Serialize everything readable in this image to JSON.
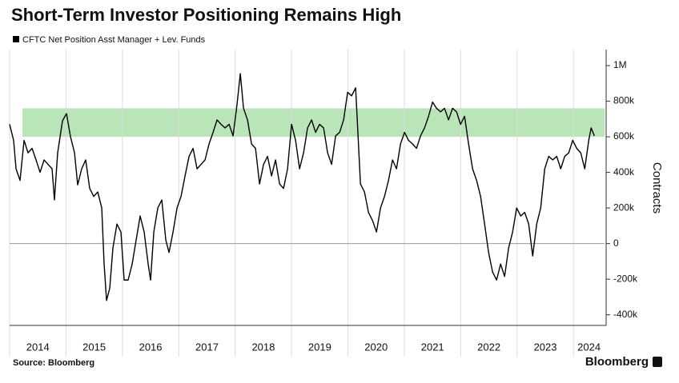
{
  "chart_data": {
    "type": "line",
    "title": "Short-Term Investor Positioning Remains High",
    "y_label": "Contracts",
    "source": "Source: Bloomberg",
    "brand": "Bloomberg",
    "x": [
      2014,
      2014.071,
      2014.114,
      2014.185,
      2014.256,
      2014.327,
      2014.398,
      2014.469,
      2014.54,
      2014.611,
      2014.682,
      2014.753,
      2014.795,
      2014.852,
      2014.938,
      2015.009,
      2015.08,
      2015.151,
      2015.207,
      2015.278,
      2015.349,
      2015.42,
      2015.491,
      2015.563,
      2015.634,
      2015.676,
      2015.719,
      2015.776,
      2015.832,
      2015.903,
      2015.974,
      2016.031,
      2016.102,
      2016.173,
      2016.244,
      2016.315,
      2016.386,
      2016.457,
      2016.5,
      2016.557,
      2016.628,
      2016.699,
      2016.77,
      2016.827,
      2016.898,
      2016.969,
      2017.04,
      2017.111,
      2017.182,
      2017.253,
      2017.324,
      2017.395,
      2017.466,
      2017.537,
      2017.608,
      2017.679,
      2017.75,
      2017.821,
      2017.892,
      2017.963,
      2018.034,
      2018.091,
      2018.148,
      2018.219,
      2018.29,
      2018.361,
      2018.432,
      2018.503,
      2018.574,
      2018.645,
      2018.716,
      2018.787,
      2018.858,
      2018.929,
      2019,
      2019.071,
      2019.142,
      2019.213,
      2019.284,
      2019.355,
      2019.426,
      2019.497,
      2019.568,
      2019.639,
      2019.71,
      2019.781,
      2019.852,
      2019.923,
      2019.994,
      2020.065,
      2020.136,
      2020.179,
      2020.222,
      2020.293,
      2020.364,
      2020.435,
      2020.506,
      2020.577,
      2020.648,
      2020.719,
      2020.79,
      2020.861,
      2020.932,
      2021.003,
      2021.074,
      2021.145,
      2021.216,
      2021.287,
      2021.358,
      2021.429,
      2021.5,
      2021.571,
      2021.642,
      2021.713,
      2021.784,
      2021.855,
      2021.926,
      2021.997,
      2022.068,
      2022.139,
      2022.21,
      2022.281,
      2022.352,
      2022.423,
      2022.494,
      2022.565,
      2022.636,
      2022.707,
      2022.778,
      2022.849,
      2022.92,
      2022.991,
      2023.063,
      2023.134,
      2023.205,
      2023.276,
      2023.347,
      2023.418,
      2023.489,
      2023.56,
      2023.631,
      2023.702,
      2023.773,
      2023.844,
      2023.915,
      2023.986,
      2024.057,
      2024.128,
      2024.199,
      2024.27,
      2024.313,
      2024.369
    ],
    "series": [
      {
        "name": "CFTC Net Position Asst Manager + Lev. Funds",
        "color": "#000000",
        "values": [
          670000,
          580000,
          420000,
          355000,
          580000,
          510000,
          535000,
          470000,
          400000,
          470000,
          445000,
          420000,
          245000,
          510000,
          690000,
          730000,
          600000,
          510000,
          330000,
          420000,
          470000,
          310000,
          265000,
          290000,
          200000,
          -115000,
          -320000,
          -250000,
          -25000,
          110000,
          65000,
          -205000,
          -205000,
          -115000,
          20000,
          155000,
          65000,
          -115000,
          -205000,
          65000,
          200000,
          245000,
          20000,
          -50000,
          65000,
          200000,
          265000,
          380000,
          490000,
          535000,
          420000,
          445000,
          470000,
          560000,
          625000,
          695000,
          670000,
          650000,
          670000,
          605000,
          785000,
          955000,
          760000,
          695000,
          560000,
          535000,
          335000,
          445000,
          490000,
          380000,
          470000,
          335000,
          310000,
          420000,
          670000,
          580000,
          420000,
          510000,
          650000,
          695000,
          625000,
          670000,
          650000,
          510000,
          445000,
          605000,
          625000,
          695000,
          850000,
          830000,
          875000,
          605000,
          335000,
          290000,
          175000,
          130000,
          65000,
          200000,
          265000,
          355000,
          470000,
          420000,
          560000,
          625000,
          580000,
          560000,
          535000,
          605000,
          650000,
          715000,
          795000,
          760000,
          740000,
          760000,
          695000,
          760000,
          740000,
          670000,
          715000,
          560000,
          420000,
          355000,
          265000,
          110000,
          -50000,
          -160000,
          -205000,
          -115000,
          -185000,
          -25000,
          65000,
          200000,
          155000,
          175000,
          110000,
          -70000,
          110000,
          200000,
          420000,
          490000,
          470000,
          490000,
          420000,
          490000,
          510000,
          580000,
          535000,
          510000,
          420000,
          580000,
          650000,
          605000
        ]
      }
    ],
    "xlim": [
      2014,
      2024.55
    ],
    "xticks": [
      2014,
      2015,
      2016,
      2017,
      2018,
      2019,
      2020,
      2021,
      2022,
      2023,
      2024
    ],
    "ylim": [
      -460000,
      1090000
    ],
    "yticks": [
      {
        "value": -400000,
        "label": "-400k"
      },
      {
        "value": -200000,
        "label": "-200k"
      },
      0,
      {
        "value": 200000,
        "label": "200k"
      },
      {
        "value": 400000,
        "label": "400k"
      },
      {
        "value": 600000,
        "label": "600k"
      },
      {
        "value": 800000,
        "label": "800k"
      },
      {
        "value": 1000000,
        "label": "1M"
      }
    ],
    "highlight_band": {
      "from": 600000,
      "to": 760000,
      "color": "#b9e5b9"
    },
    "zero_line": true,
    "x_grid": true,
    "y_axis_side": "right"
  }
}
